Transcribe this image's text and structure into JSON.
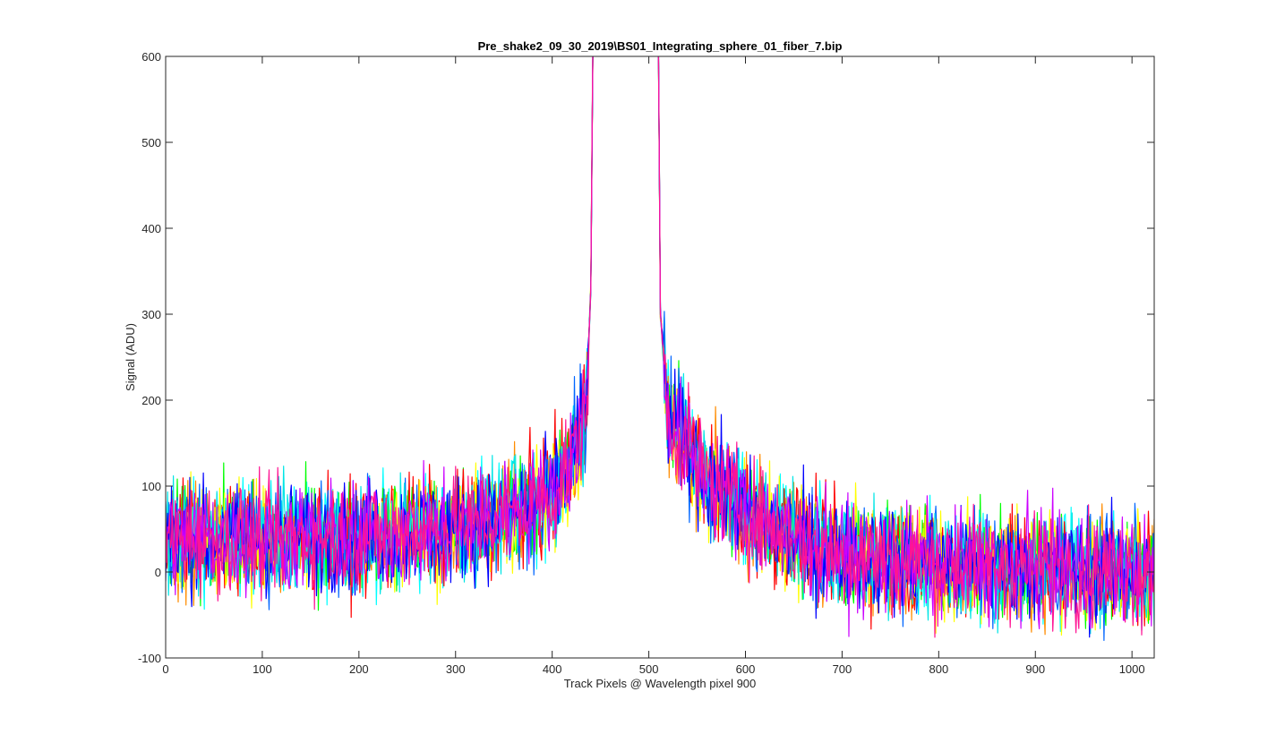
{
  "window": {
    "background": "#ffffff"
  },
  "chart_data": {
    "type": "line",
    "title": "Pre_shake2_09_30_2019\\BS01_Integrating_sphere_01_fiber_7.bip",
    "xlabel": "Track Pixels @ Wavelength pixel 900",
    "ylabel": "Signal (ADU)",
    "xlim": [
      0,
      1023
    ],
    "ylim": [
      -100,
      600
    ],
    "xticks": [
      0,
      100,
      200,
      300,
      400,
      500,
      600,
      700,
      800,
      900,
      1000
    ],
    "yticks": [
      -100,
      0,
      100,
      200,
      300,
      400,
      500,
      600
    ],
    "grid": false,
    "legend": "none",
    "series_colors": [
      "#00ffff",
      "#ff8c00",
      "#00ff00",
      "#ff0000",
      "#ffff00",
      "#0066ff",
      "#00e5e5",
      "#0000ff",
      "#cc00ff",
      "#ff1493"
    ],
    "envelope": {
      "description": "noisy track-profile traces; mean level (ADU) by track pixel",
      "x": [
        0,
        100,
        200,
        300,
        350,
        400,
        420,
        435,
        440,
        442,
        510,
        512,
        520,
        560,
        600,
        650,
        700,
        800,
        900,
        1023
      ],
      "y": [
        40,
        38,
        42,
        50,
        65,
        90,
        130,
        190,
        330,
        600,
        600,
        300,
        180,
        110,
        70,
        40,
        20,
        10,
        5,
        0
      ]
    },
    "noise_amplitude_adu": 45
  }
}
